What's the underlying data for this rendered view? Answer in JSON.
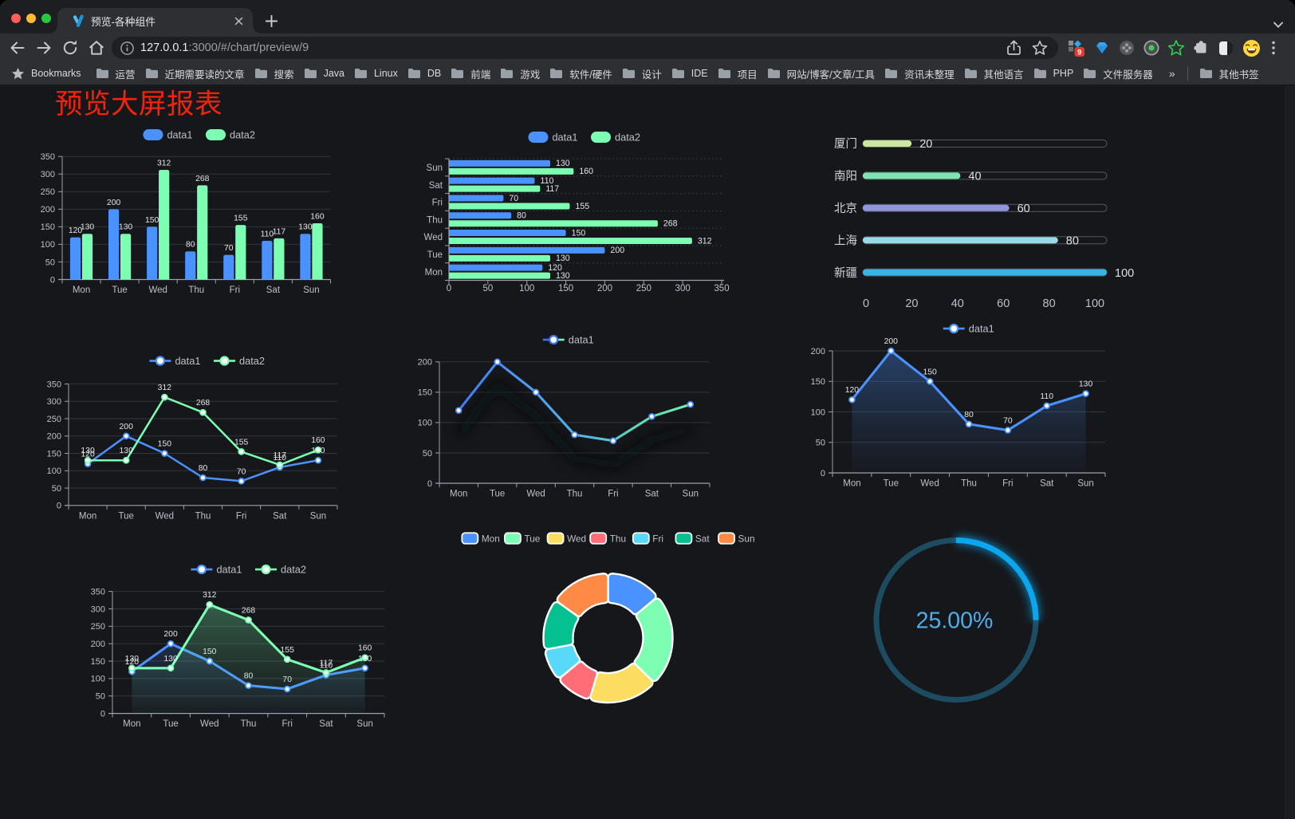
{
  "browser": {
    "tab": {
      "title": "预览-各种组件"
    },
    "url": {
      "host": "127.0.0.1",
      "rest": ":3000/#/chart/preview/9"
    },
    "bookmarks_label": "Bookmarks",
    "bookmarks": [
      "运营",
      "近期需要读的文章",
      "搜索",
      "Java",
      "Linux",
      "DB",
      "前端",
      "游戏",
      "软件/硬件",
      "设计",
      "IDE",
      "项目",
      "网站/博客/文章/工具",
      "资讯未整理",
      "其他语言",
      "PHP",
      "文件服务器"
    ],
    "bookmarks_overflow": "»",
    "other_bookmarks": "其他书签",
    "extension_badge": "9"
  },
  "page": {
    "title": "预览大屏报表",
    "title_color": "#f5230b",
    "background": "#16171b"
  },
  "chart_data": [
    {
      "type": "bar",
      "title": "",
      "categories": [
        "Mon",
        "Tue",
        "Wed",
        "Thu",
        "Fri",
        "Sat",
        "Sun"
      ],
      "series": [
        {
          "name": "data1",
          "color": "#4992ff",
          "values": [
            120,
            200,
            150,
            80,
            70,
            110,
            130
          ]
        },
        {
          "name": "data2",
          "color": "#7cffb2",
          "values": [
            130,
            130,
            312,
            268,
            155,
            117,
            160
          ]
        }
      ],
      "ylim": [
        0,
        350
      ],
      "ytick": 50,
      "grid": true,
      "labels": true,
      "legend_position": "top"
    },
    {
      "type": "bar-horizontal",
      "title": "",
      "categories": [
        "Mon",
        "Tue",
        "Wed",
        "Thu",
        "Fri",
        "Sat",
        "Sun"
      ],
      "series": [
        {
          "name": "data1",
          "color": "#4992ff",
          "values": [
            120,
            200,
            150,
            80,
            70,
            110,
            130
          ]
        },
        {
          "name": "data2",
          "color": "#7cffb2",
          "values": [
            130,
            130,
            312,
            268,
            155,
            117,
            160
          ]
        }
      ],
      "xlim": [
        0,
        350
      ],
      "xtick": 50,
      "grid": true,
      "labels": true,
      "legend_position": "top"
    },
    {
      "type": "progress",
      "title": "",
      "items": [
        {
          "label": "厦门",
          "value": 20,
          "color": "#cbe79e"
        },
        {
          "label": "南阳",
          "value": 40,
          "color": "#7de3b2"
        },
        {
          "label": "北京",
          "value": 60,
          "color": "#8f96dc"
        },
        {
          "label": "上海",
          "value": 80,
          "color": "#97dbe6"
        },
        {
          "label": "新疆",
          "value": 100,
          "color": "#38b3e6"
        }
      ],
      "xlim": [
        0,
        100
      ],
      "xticks": [
        0,
        20,
        40,
        60,
        80,
        100
      ]
    },
    {
      "type": "line",
      "title": "",
      "categories": [
        "Mon",
        "Tue",
        "Wed",
        "Thu",
        "Fri",
        "Sat",
        "Sun"
      ],
      "series": [
        {
          "name": "data1",
          "color": "#4992ff",
          "values": [
            120,
            200,
            150,
            80,
            70,
            110,
            130
          ]
        },
        {
          "name": "data2",
          "color": "#7cffb2",
          "values": [
            130,
            130,
            312,
            268,
            155,
            117,
            160
          ]
        }
      ],
      "ylim": [
        0,
        350
      ],
      "ytick": 50,
      "grid": true,
      "labels": true,
      "legend_position": "top"
    },
    {
      "type": "line",
      "title": "",
      "categories": [
        "Mon",
        "Tue",
        "Wed",
        "Thu",
        "Fri",
        "Sat",
        "Sun"
      ],
      "series": [
        {
          "name": "data1",
          "color": "#4992ff",
          "values": [
            120,
            200,
            150,
            80,
            70,
            110,
            130
          ],
          "gradient": [
            "#3c70f1",
            "#4c97f5",
            "#53b7e3",
            "#61d9b4",
            "#70eba7",
            "#7cf2ad"
          ],
          "gradient_offsets": [
            0,
            30,
            55,
            75,
            90,
            100
          ],
          "shadow": true
        }
      ],
      "ylim": [
        0,
        200
      ],
      "ytick": 50,
      "grid": true,
      "labels": false,
      "legend_position": "top"
    },
    {
      "type": "area",
      "title": "",
      "categories": [
        "Mon",
        "Tue",
        "Wed",
        "Thu",
        "Fri",
        "Sat",
        "Sun"
      ],
      "series": [
        {
          "name": "data1",
          "color": "#4992ff",
          "values": [
            120,
            200,
            150,
            80,
            70,
            110,
            130
          ],
          "area": true
        }
      ],
      "ylim": [
        0,
        200
      ],
      "ytick": 50,
      "grid": true,
      "labels": true,
      "legend_position": "top"
    },
    {
      "type": "area",
      "title": "",
      "categories": [
        "Mon",
        "Tue",
        "Wed",
        "Thu",
        "Fri",
        "Sat",
        "Sun"
      ],
      "series": [
        {
          "name": "data1",
          "color": "#4992ff",
          "values": [
            120,
            200,
            150,
            80,
            70,
            110,
            130
          ],
          "area": true
        },
        {
          "name": "data2",
          "color": "#7cffb2",
          "values": [
            130,
            130,
            312,
            268,
            155,
            117,
            160
          ],
          "area": true
        }
      ],
      "ylim": [
        0,
        350
      ],
      "ytick": 50,
      "grid": true,
      "labels": true,
      "legend_position": "top"
    },
    {
      "type": "pie",
      "title": "",
      "items": [
        {
          "label": "Mon",
          "value": 120,
          "color": "#4992ff"
        },
        {
          "label": "Tue",
          "value": 200,
          "color": "#7cffb2"
        },
        {
          "label": "Wed",
          "value": 150,
          "color": "#fddd60"
        },
        {
          "label": "Thu",
          "value": 80,
          "color": "#ff6e76"
        },
        {
          "label": "Fri",
          "value": 70,
          "color": "#58d9f9"
        },
        {
          "label": "Sat",
          "value": 110,
          "color": "#05c091"
        },
        {
          "label": "Sun",
          "value": 130,
          "color": "#ff8a45"
        }
      ],
      "donut": true,
      "legend_position": "top"
    },
    {
      "type": "gauge",
      "title": "",
      "value": 25,
      "display": "25.00%",
      "color": "#0aa7ee",
      "track_color": "#1d4b60",
      "text_color": "#4fadea"
    }
  ]
}
